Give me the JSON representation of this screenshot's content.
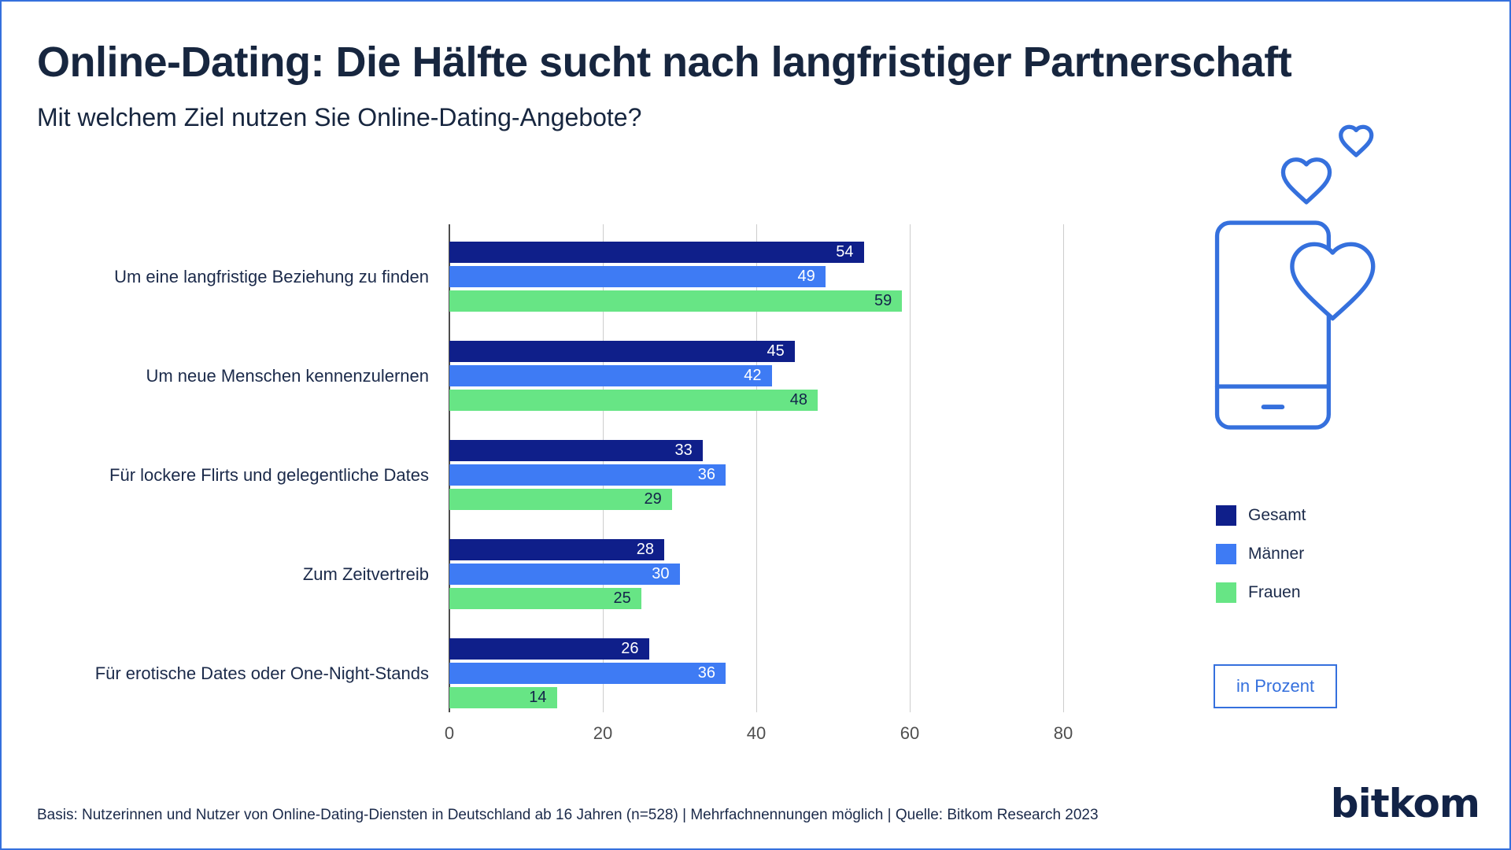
{
  "page": {
    "footer": "Basis: Nutzerinnen und Nutzer von Online-Dating-Diensten in Deutschland ab 16 Jahren (n=528) | Mehrfachnennungen möglich | Quelle: Bitkom Research 2023",
    "brand": "bitkom",
    "accent_color": "#3570dd"
  },
  "chart_data": {
    "type": "bar",
    "orientation": "horizontal",
    "title": "Online-Dating: Die Hälfte sucht nach langfristiger Partnerschaft",
    "subtitle": "Mit welchem Ziel nutzen Sie Online-Dating-Angebote?",
    "unit": "in Prozent",
    "categories": [
      "Um eine langfristige Beziehung zu finden",
      "Um neue Menschen kennenzulernen",
      "Für lockere Flirts und gelegentliche Dates",
      "Zum Zeitvertreib",
      "Für erotische Dates oder One-Night-Stands"
    ],
    "series": [
      {
        "name": "Gesamt",
        "color": "#0f1f8a",
        "label_color": "#ffffff",
        "values": [
          54,
          45,
          33,
          28,
          26
        ]
      },
      {
        "name": "Männer",
        "color": "#3e7bf4",
        "label_color": "#ffffff",
        "values": [
          49,
          42,
          36,
          30,
          36
        ]
      },
      {
        "name": "Frauen",
        "color": "#67e585",
        "label_color": "#13234a",
        "values": [
          59,
          48,
          29,
          25,
          14
        ]
      }
    ],
    "x_ticks": [
      0,
      20,
      40,
      60,
      80
    ],
    "xlim": [
      0,
      85
    ],
    "grid": true,
    "legend_position": "right"
  }
}
